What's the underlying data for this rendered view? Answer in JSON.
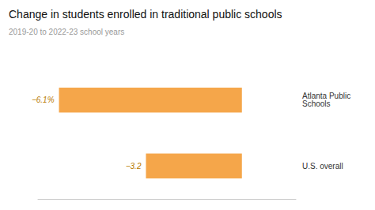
{
  "chart_data": {
    "type": "bar",
    "orientation": "horizontal",
    "title": "Change in students enrolled in traditional public schools",
    "subtitle": "2019-20 to 2022-23 school years",
    "categories": [
      "Atlanta Public\nSchools",
      "U.S. overall"
    ],
    "values": [
      -6.1,
      -3.2
    ],
    "value_labels": [
      "−6.1%",
      "−3.2"
    ],
    "data_labels": true,
    "color": "#F5A64A",
    "xlim": [
      -6.8,
      1.8
    ],
    "grid": false,
    "tick_labels": "y"
  }
}
